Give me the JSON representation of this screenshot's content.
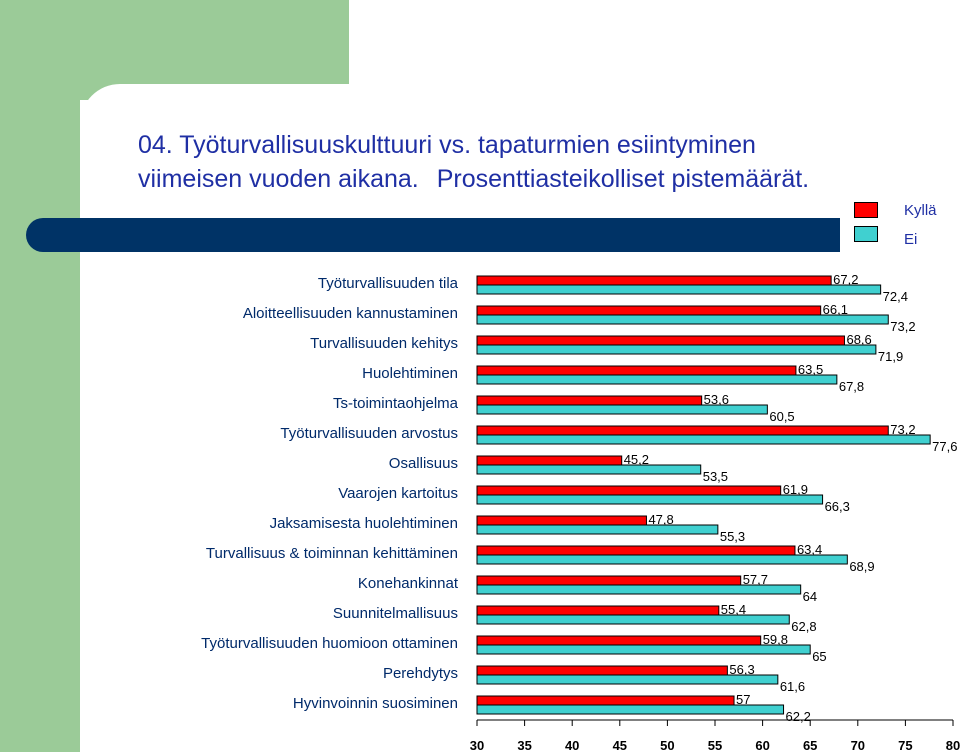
{
  "title_line1": "04. Työturvallisuuskulttuuri vs. tapaturmien esiintyminen",
  "title_line2a": "viimeisen vuoden aikana.",
  "title_line2b": "Prosenttiasteikolliset pistemäärät.",
  "colors": {
    "kylla": "#ff0000",
    "ei": "#40d0d0",
    "band": "#003366",
    "title": "#1f2fa4"
  },
  "chart_data": {
    "type": "bar",
    "orientation": "horizontal",
    "categories": [
      "Työturvallisuuden tila",
      "Aloitteellisuuden kannustaminen",
      "Turvallisuuden kehitys",
      "Huolehtiminen",
      "Ts-toimintaohjelma",
      "Työturvallisuuden arvostus",
      "Osallisuus",
      "Vaarojen kartoitus",
      "Jaksamisesta huolehtiminen",
      "Turvallisuus & toiminnan kehittäminen",
      "Konehankinnat",
      "Suunnitelmallisuus",
      "Työturvallisuuden huomioon ottaminen",
      "Perehdytys",
      "Hyvinvoinnin suosiminen"
    ],
    "series": [
      {
        "name": "Kyllä",
        "values": [
          67.2,
          66.1,
          68.6,
          63.5,
          53.6,
          73.2,
          45.2,
          61.9,
          47.8,
          63.4,
          57.7,
          55.4,
          59.8,
          56.3,
          57
        ]
      },
      {
        "name": "Ei",
        "values": [
          72.4,
          73.2,
          71.9,
          67.8,
          60.5,
          77.6,
          53.5,
          66.3,
          55.3,
          68.9,
          64,
          62.8,
          65,
          61.6,
          62.2
        ]
      }
    ],
    "value_labels": {
      "Kyllä": [
        "67,2",
        "66,1",
        "68,6",
        "63,5",
        "53,6",
        "73,2",
        "45,2",
        "61,9",
        "47,8",
        "63,4",
        "57,7",
        "55,4",
        "59,8",
        "56,3",
        "57"
      ],
      "Ei": [
        "72,4",
        "73,2",
        "71,9",
        "67,8",
        "60,5",
        "77,6",
        "53,5",
        "66,3",
        "55,3",
        "68,9",
        "64",
        "62,8",
        "65",
        "61,6",
        "62,2"
      ]
    },
    "xlim": [
      30,
      80
    ],
    "xticks": [
      "30",
      "35",
      "40",
      "45",
      "50",
      "55",
      "60",
      "65",
      "70",
      "75",
      "80"
    ],
    "legend_position": "top-right"
  }
}
